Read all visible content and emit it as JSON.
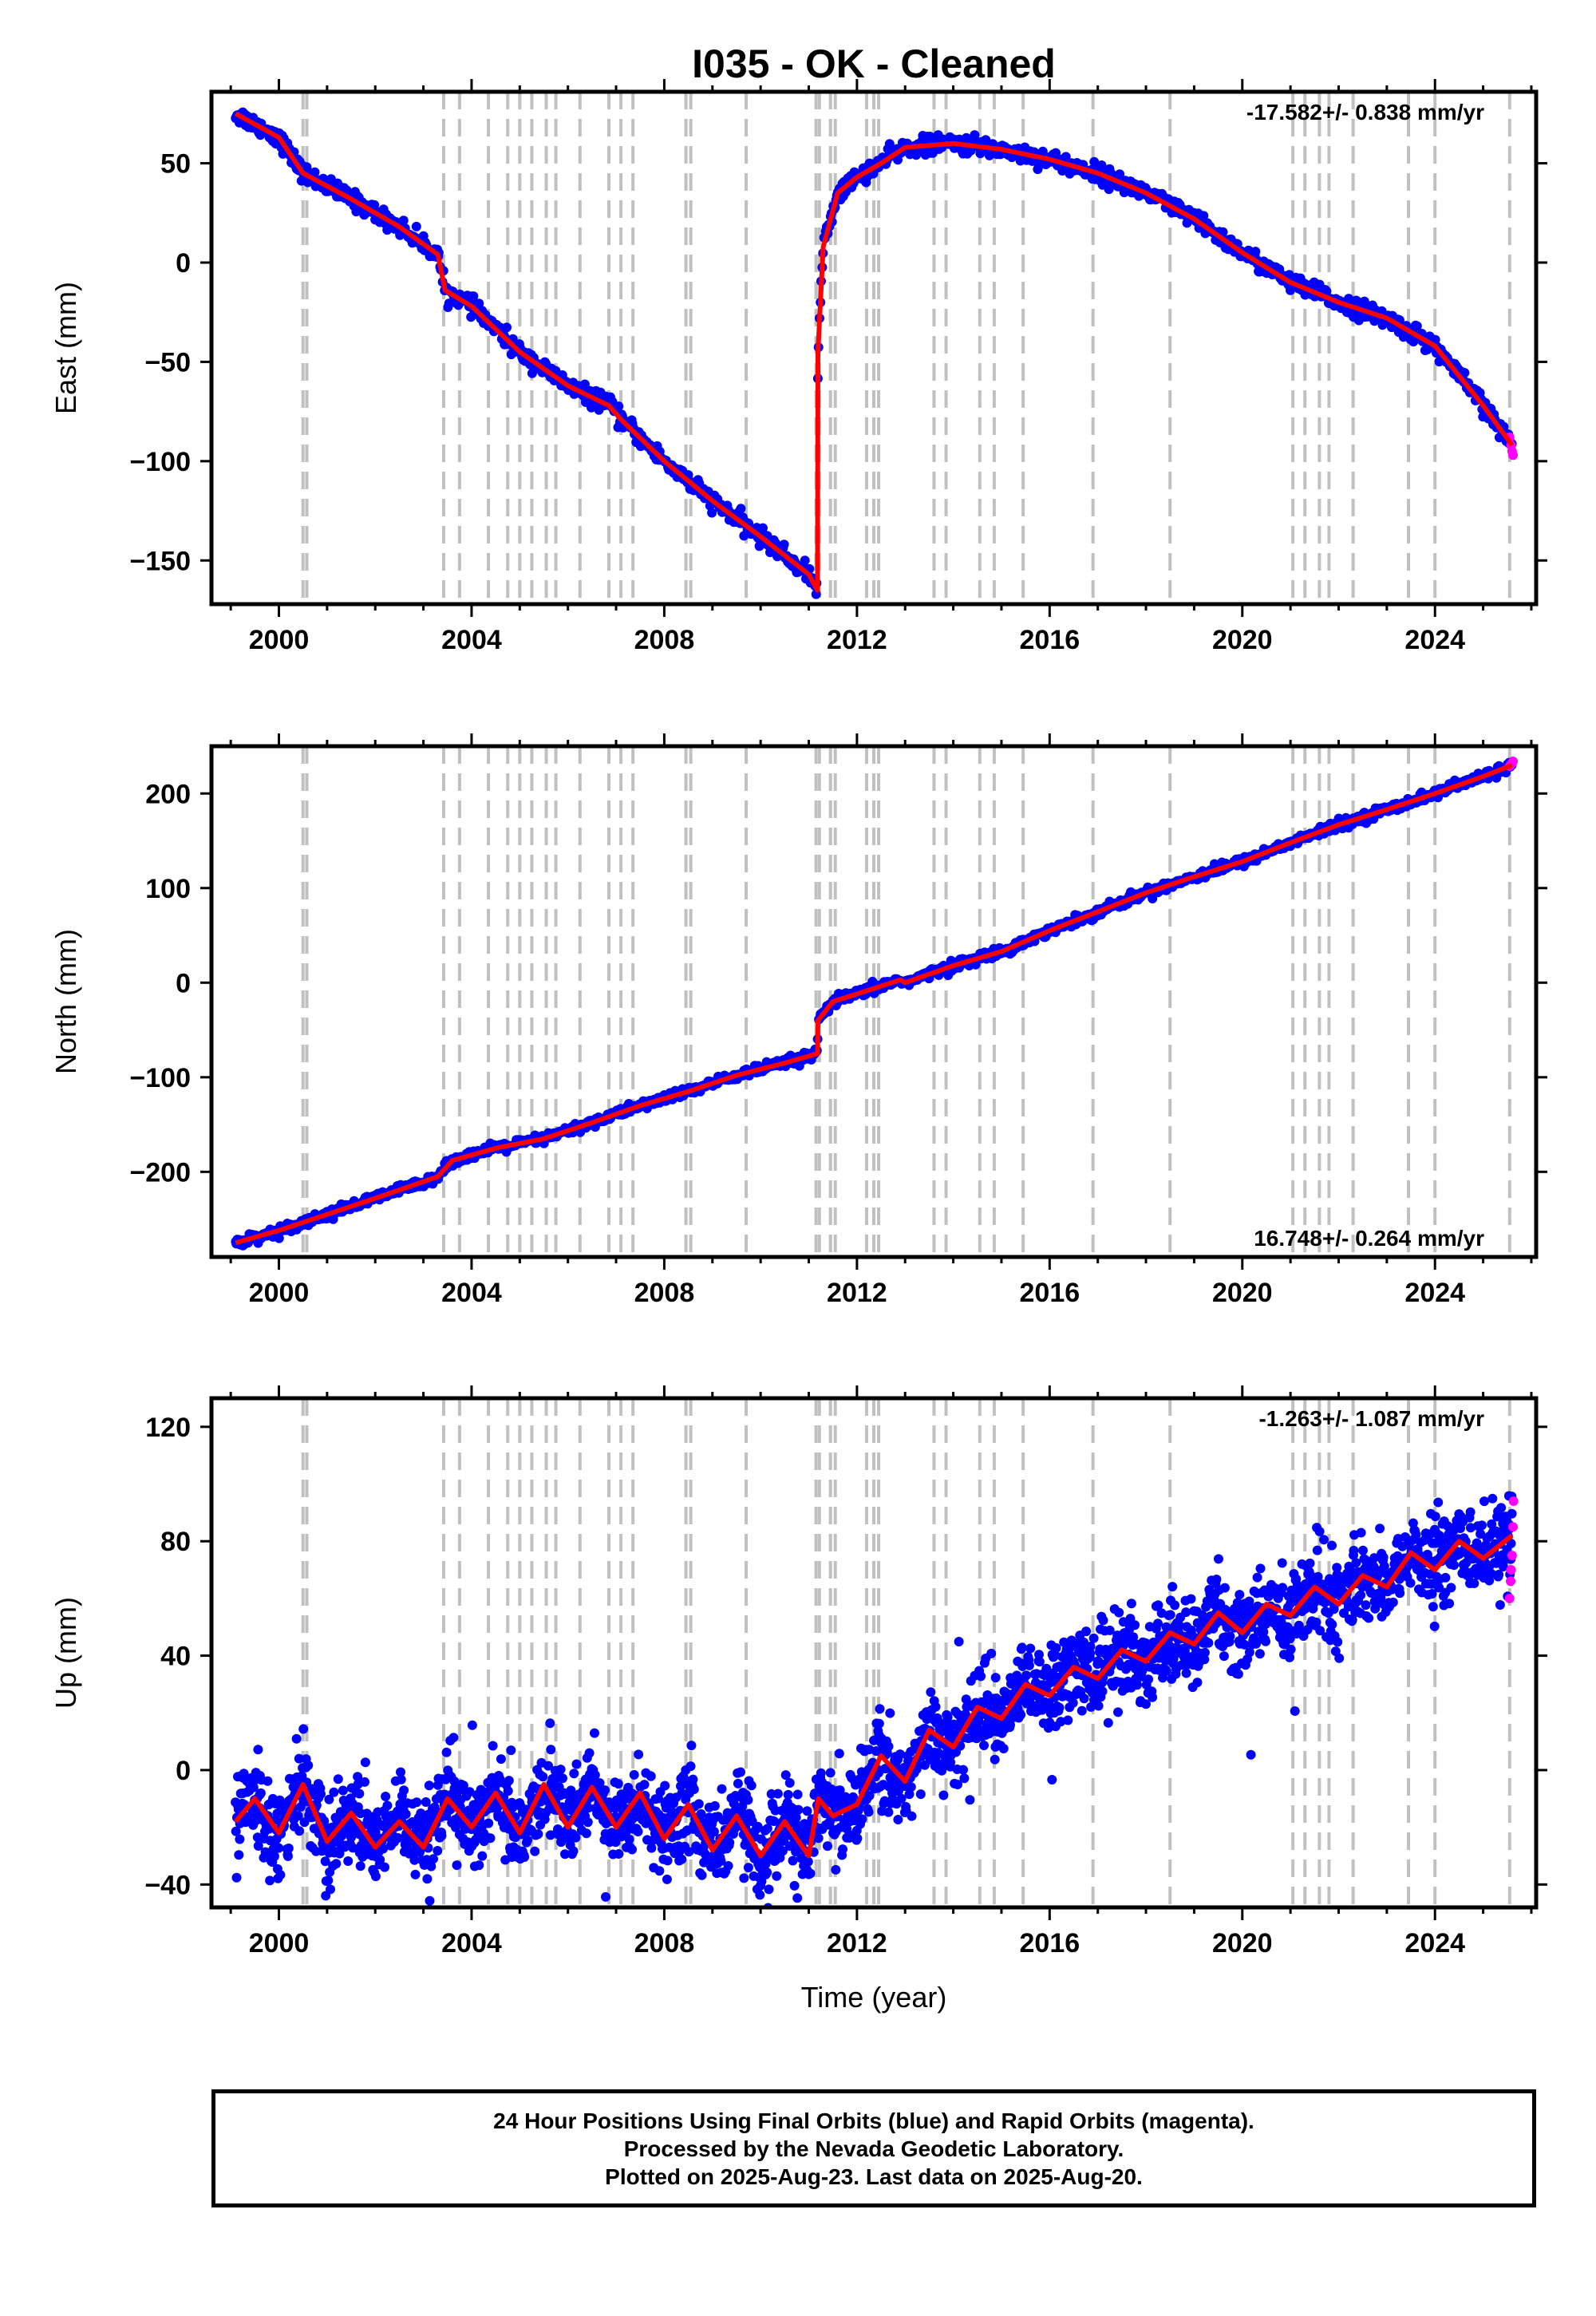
{
  "title": "I035  - OK - Cleaned",
  "x_axis": {
    "label": "Time (year)",
    "ticks": [
      "2000",
      "2004",
      "2008",
      "2012",
      "2016",
      "2020",
      "2024"
    ]
  },
  "legend_note": [
    "24 Hour Positions Using Final Orbits (blue) and Rapid Orbits (magenta).",
    "Processed by the Nevada Geodetic Laboratory.",
    "Plotted on 2025-Aug-23. Last data on 2025-Aug-20."
  ],
  "colors": {
    "final_orbits": "#0000ff",
    "rapid_orbits": "#ff00ff",
    "model": "#ff0000",
    "breaks": "#c0c0c0"
  },
  "chart_data": [
    {
      "type": "scatter",
      "ylabel": "East (mm)",
      "xlim": [
        1998.6,
        2026.1
      ],
      "ylim": [
        -172,
        86
      ],
      "yticks": [
        50,
        0,
        -50,
        -100,
        -150
      ],
      "rate_text": "-17.582+/- 0.838 mm/yr",
      "rate_position": "top-right",
      "grid": false,
      "break_epochs": [
        2000.5,
        2000.58,
        2003.42,
        2003.75,
        2004.35,
        2004.75,
        2005.0,
        2005.25,
        2005.55,
        2005.75,
        2006.25,
        2006.85,
        2007.1,
        2007.35,
        2008.45,
        2008.55,
        2009.7,
        2011.15,
        2011.22,
        2011.45,
        2011.55,
        2012.2,
        2012.35,
        2012.45,
        2013.6,
        2013.85,
        2014.55,
        2014.85,
        2015.45,
        2016.9,
        2018.5,
        2021.05,
        2021.3,
        2021.6,
        2021.8,
        2022.3,
        2023.45,
        2024.0,
        2025.55
      ],
      "model": {
        "x": [
          1999.1,
          2000.0,
          2000.5,
          2001.5,
          2002.5,
          2003.3,
          2003.45,
          2004.0,
          2005.0,
          2006.0,
          2006.85,
          2007.1,
          2008.0,
          2009.0,
          2010.0,
          2011.0,
          2011.18,
          2011.19,
          2011.3,
          2011.6,
          2012.0,
          2012.5,
          2013.0,
          2014.0,
          2015.0,
          2016.0,
          2017.0,
          2018.0,
          2019.0,
          2020.0,
          2021.0,
          2022.0,
          2023.0,
          2024.0,
          2025.0,
          2025.6
        ],
        "y": [
          75,
          63,
          45,
          32,
          18,
          4,
          -14,
          -22,
          -45,
          -62,
          -72,
          -79,
          -100,
          -120,
          -138,
          -157,
          -165,
          -45,
          8,
          35,
          43,
          50,
          58,
          60,
          57,
          52,
          45,
          35,
          22,
          5,
          -10,
          -20,
          -28,
          -42,
          -72,
          -92
        ]
      },
      "rapid": {
        "x": [
          2025.55,
          2025.58,
          2025.6,
          2025.62
        ],
        "y": [
          -88,
          -92,
          -95,
          -97
        ]
      }
    },
    {
      "type": "scatter",
      "ylabel": "North (mm)",
      "xlim": [
        1998.6,
        2026.1
      ],
      "ylim": [
        -290,
        250
      ],
      "yticks": [
        200,
        100,
        0,
        -100,
        -200
      ],
      "rate_text": "16.748+/- 0.264 mm/yr",
      "rate_position": "bottom-right",
      "grid": false,
      "break_epochs": [
        2000.5,
        2000.58,
        2003.42,
        2003.75,
        2004.35,
        2004.75,
        2005.0,
        2005.25,
        2005.55,
        2005.75,
        2006.25,
        2006.85,
        2007.1,
        2007.35,
        2008.45,
        2008.55,
        2009.7,
        2011.15,
        2011.22,
        2011.45,
        2011.55,
        2012.2,
        2012.35,
        2012.45,
        2013.6,
        2013.85,
        2014.55,
        2014.85,
        2015.45,
        2016.9,
        2018.5,
        2021.05,
        2021.3,
        2021.6,
        2021.8,
        2022.3,
        2023.45,
        2024.0,
        2025.55
      ],
      "model": {
        "x": [
          1999.1,
          2000.0,
          2001.0,
          2002.0,
          2003.3,
          2003.6,
          2004.5,
          2005.5,
          2006.5,
          2007.5,
          2008.5,
          2009.5,
          2010.5,
          2011.18,
          2011.19,
          2011.5,
          2012.0,
          2012.9,
          2013.0,
          2014.0,
          2015.0,
          2016.0,
          2017.0,
          2018.0,
          2019.0,
          2020.0,
          2021.0,
          2022.0,
          2023.0,
          2024.0,
          2025.0,
          2025.6
        ],
        "y": [
          -275,
          -262,
          -245,
          -228,
          -205,
          -188,
          -175,
          -165,
          -148,
          -130,
          -115,
          -98,
          -85,
          -75,
          -40,
          -20,
          -12,
          3,
          0,
          18,
          33,
          55,
          75,
          95,
          112,
          128,
          148,
          167,
          183,
          200,
          218,
          230
        ]
      },
      "rapid": {
        "x": [
          2025.55,
          2025.58,
          2025.6,
          2025.62
        ],
        "y": [
          229,
          231,
          232,
          234
        ]
      }
    },
    {
      "type": "scatter",
      "ylabel": "Up (mm)",
      "xlim": [
        1998.6,
        2026.1
      ],
      "ylim": [
        -48,
        130
      ],
      "yticks": [
        120,
        80,
        40,
        0,
        -40
      ],
      "rate_text": "-1.263+/- 1.087 mm/yr",
      "rate_position": "top-right",
      "grid": false,
      "break_epochs": [
        2000.5,
        2000.58,
        2003.42,
        2003.75,
        2004.35,
        2004.75,
        2005.0,
        2005.25,
        2005.55,
        2005.75,
        2006.25,
        2006.85,
        2007.1,
        2007.35,
        2008.45,
        2008.55,
        2009.7,
        2011.15,
        2011.22,
        2011.45,
        2011.55,
        2012.2,
        2012.35,
        2012.45,
        2013.6,
        2013.85,
        2014.55,
        2014.85,
        2015.45,
        2016.9,
        2018.5,
        2021.05,
        2021.3,
        2021.6,
        2021.8,
        2022.3,
        2023.45,
        2024.0,
        2025.55
      ],
      "model": {
        "x": [
          1999.1,
          1999.5,
          2000.0,
          2000.5,
          2001.0,
          2001.5,
          2002.0,
          2002.5,
          2003.0,
          2003.5,
          2004.0,
          2004.5,
          2005.0,
          2005.5,
          2006.0,
          2006.5,
          2007.0,
          2007.5,
          2008.0,
          2008.5,
          2009.0,
          2009.5,
          2010.0,
          2010.5,
          2011.0,
          2011.2,
          2011.5,
          2012.0,
          2012.5,
          2013.0,
          2013.5,
          2014.0,
          2014.5,
          2015.0,
          2015.5,
          2016.0,
          2016.5,
          2017.0,
          2017.5,
          2018.0,
          2018.5,
          2019.0,
          2019.5,
          2020.0,
          2020.5,
          2021.0,
          2021.5,
          2022.0,
          2022.5,
          2023.0,
          2023.5,
          2024.0,
          2024.5,
          2025.0,
          2025.6
        ],
        "y": [
          -18,
          -10,
          -22,
          -5,
          -25,
          -15,
          -27,
          -18,
          -27,
          -10,
          -20,
          -8,
          -22,
          -5,
          -20,
          -6,
          -20,
          -8,
          -24,
          -12,
          -28,
          -16,
          -30,
          -18,
          -30,
          -10,
          -16,
          -12,
          5,
          -4,
          14,
          8,
          22,
          18,
          30,
          26,
          36,
          32,
          42,
          38,
          48,
          44,
          55,
          48,
          58,
          54,
          64,
          58,
          68,
          64,
          76,
          70,
          80,
          74,
          82
        ]
      },
      "rapid": {
        "x": [
          2025.55,
          2025.57,
          2025.58,
          2025.6,
          2025.62,
          2025.63
        ],
        "y": [
          60,
          66,
          70,
          75,
          85,
          94
        ]
      }
    }
  ]
}
